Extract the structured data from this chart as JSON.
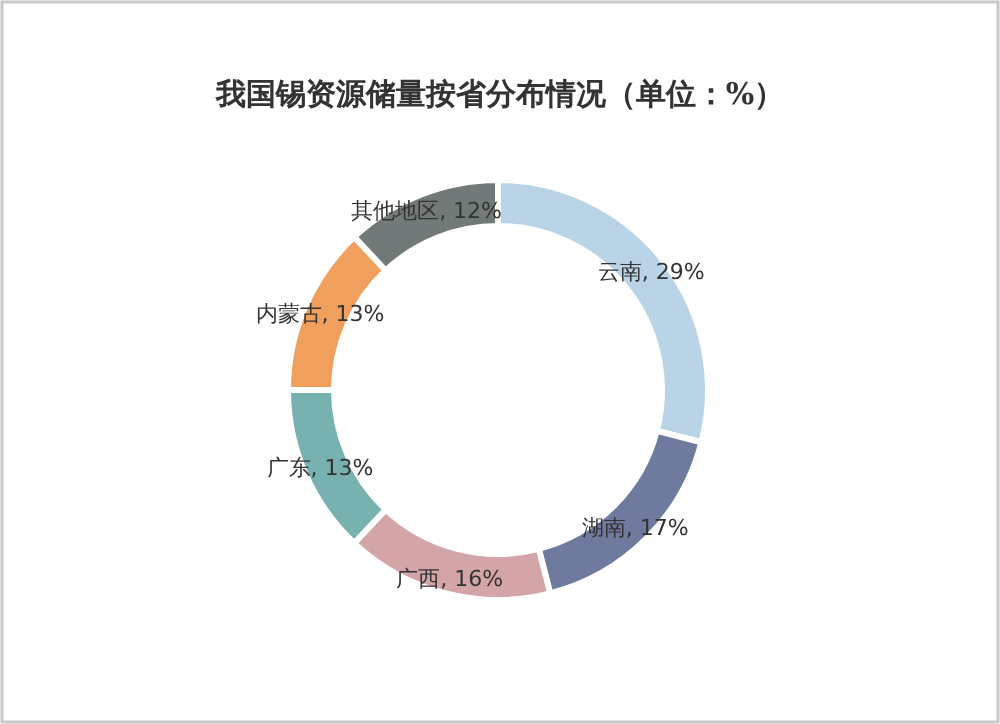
{
  "chart_data": {
    "type": "donut",
    "title": "我国锡资源储量按省分布情况（单位：%）",
    "categories": [
      "云南",
      "湖南",
      "广西",
      "广东",
      "内蒙古",
      "其他地区"
    ],
    "values": [
      29,
      17,
      16,
      13,
      13,
      12
    ],
    "value_labels": [
      "29%",
      "17%",
      "16%",
      "13%",
      "13%",
      "12%"
    ],
    "colors": [
      "#b8d4e6",
      "#6f7a9f",
      "#d4a5a6",
      "#78b2b0",
      "#f0a05c",
      "#717a78"
    ]
  }
}
